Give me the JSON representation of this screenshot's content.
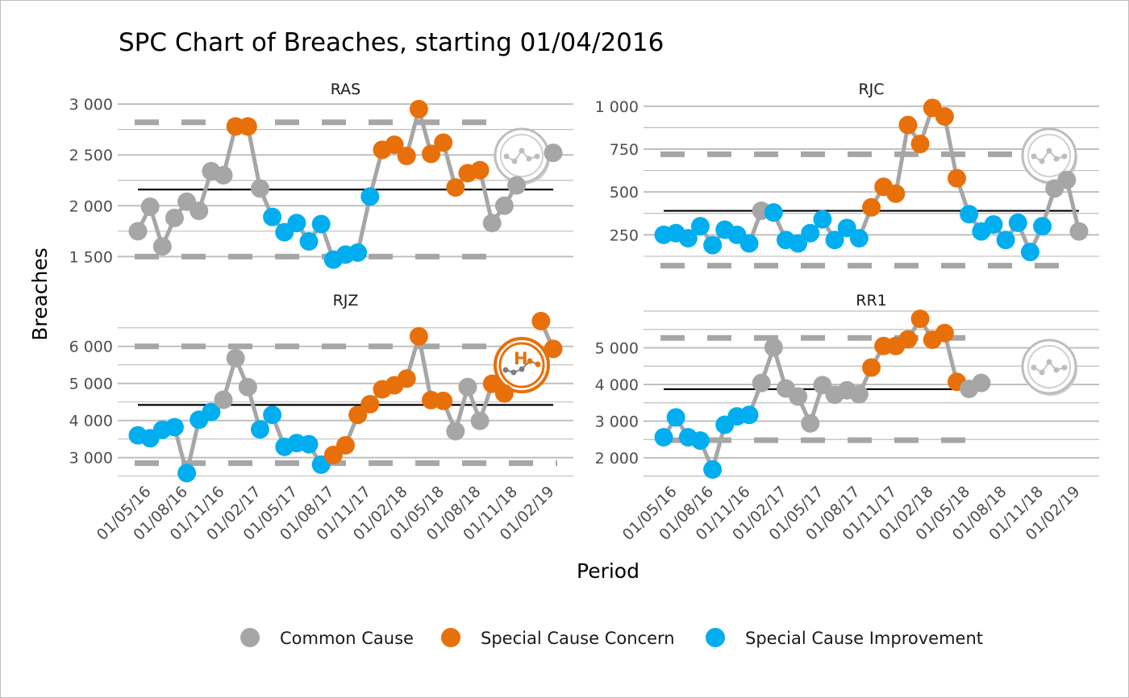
{
  "chart_data": {
    "type": "line",
    "title": "SPC Chart of Breaches, starting 01/04/2016",
    "xlabel": "Period",
    "ylabel": "Breaches",
    "x_tick_labels": [
      "01/05/16",
      "01/08/16",
      "01/11/16",
      "01/02/17",
      "01/05/17",
      "01/08/17",
      "01/11/17",
      "01/02/18",
      "01/05/18",
      "01/08/18",
      "01/11/18",
      "01/02/19"
    ],
    "x_months_from_start": [
      1,
      4,
      7,
      10,
      13,
      16,
      19,
      22,
      25,
      28,
      31,
      34
    ],
    "grid": true,
    "colors": {
      "Common Cause": "#a6a6a6",
      "Special Cause Concern": "#e8700a",
      "Special Cause Improvement": "#00aeef",
      "line": "#a6a6a6",
      "mean": "#000000",
      "limits": "#a6a6a6"
    },
    "legend": {
      "placement": "bottom",
      "entries": [
        "Common Cause",
        "Special Cause Concern",
        "Special Cause Improvement"
      ]
    },
    "panels": [
      {
        "name": "RAS",
        "yticks": [
          1500,
          2000,
          2500,
          3000
        ],
        "ytick_labels": [
          "1 500",
          "2 000",
          "2 500",
          "3 000"
        ],
        "mean": 2160,
        "ucl": 2820,
        "lcl": 1500,
        "icon": "common-cause-icon",
        "values": [
          1750,
          1990,
          1600,
          1880,
          2040,
          1950,
          2340,
          2300,
          2780,
          2780,
          2170,
          1890,
          1740,
          1830,
          1650,
          1820,
          1470,
          1520,
          1540,
          2090,
          2550,
          2600,
          2490,
          2950,
          2510,
          2620,
          2180,
          2320,
          2350,
          1830,
          2000,
          2200,
          null,
          null,
          2520
        ],
        "status": [
          "Common Cause",
          "Common Cause",
          "Common Cause",
          "Common Cause",
          "Common Cause",
          "Common Cause",
          "Common Cause",
          "Common Cause",
          "Special Cause Concern",
          "Special Cause Concern",
          "Common Cause",
          "Special Cause Improvement",
          "Special Cause Improvement",
          "Special Cause Improvement",
          "Special Cause Improvement",
          "Special Cause Improvement",
          "Special Cause Improvement",
          "Special Cause Improvement",
          "Special Cause Improvement",
          "Special Cause Improvement",
          "Special Cause Concern",
          "Special Cause Concern",
          "Special Cause Concern",
          "Special Cause Concern",
          "Special Cause Concern",
          "Special Cause Concern",
          "Special Cause Concern",
          "Special Cause Concern",
          "Special Cause Concern",
          "Common Cause",
          "Common Cause",
          "Common Cause",
          null,
          null,
          "Common Cause"
        ]
      },
      {
        "name": "RJC",
        "yticks": [
          250,
          500,
          750,
          1000
        ],
        "ytick_labels": [
          "250",
          "500",
          "750",
          "1 000"
        ],
        "mean": 390,
        "ucl": 720,
        "lcl": 70,
        "icon": "common-cause-icon",
        "values": [
          250,
          260,
          230,
          300,
          190,
          280,
          250,
          200,
          390,
          380,
          220,
          200,
          260,
          340,
          220,
          290,
          230,
          410,
          530,
          490,
          890,
          780,
          990,
          940,
          580,
          370,
          270,
          310,
          220,
          320,
          150,
          300,
          520,
          570,
          270
        ],
        "status": [
          "Special Cause Improvement",
          "Special Cause Improvement",
          "Special Cause Improvement",
          "Special Cause Improvement",
          "Special Cause Improvement",
          "Special Cause Improvement",
          "Special Cause Improvement",
          "Special Cause Improvement",
          "Common Cause",
          "Special Cause Improvement",
          "Special Cause Improvement",
          "Special Cause Improvement",
          "Special Cause Improvement",
          "Special Cause Improvement",
          "Special Cause Improvement",
          "Special Cause Improvement",
          "Special Cause Improvement",
          "Special Cause Concern",
          "Special Cause Concern",
          "Special Cause Concern",
          "Special Cause Concern",
          "Special Cause Concern",
          "Special Cause Concern",
          "Special Cause Concern",
          "Special Cause Concern",
          "Special Cause Improvement",
          "Special Cause Improvement",
          "Special Cause Improvement",
          "Special Cause Improvement",
          "Special Cause Improvement",
          "Special Cause Improvement",
          "Special Cause Improvement",
          "Common Cause",
          "Common Cause",
          "Common Cause"
        ]
      },
      {
        "name": "RJZ",
        "yticks": [
          3000,
          4000,
          5000,
          6000
        ],
        "ytick_labels": [
          "3 000",
          "4 000",
          "5 000",
          "6 000"
        ],
        "mean": 4420,
        "ucl": 6000,
        "lcl": 2850,
        "icon": "special-cause-concern-high-icon",
        "icon_letter": "H",
        "values": [
          3600,
          3520,
          3750,
          3820,
          2580,
          4020,
          4230,
          4560,
          5680,
          4900,
          3760,
          4150,
          3290,
          3390,
          3360,
          2810,
          3070,
          3330,
          4150,
          4440,
          4840,
          4950,
          5130,
          6270,
          4550,
          4530,
          3710,
          4900,
          3990,
          4990,
          4730,
          null,
          null,
          6680,
          5930
        ],
        "status": [
          "Special Cause Improvement",
          "Special Cause Improvement",
          "Special Cause Improvement",
          "Special Cause Improvement",
          "Special Cause Improvement",
          "Special Cause Improvement",
          "Special Cause Improvement",
          "Common Cause",
          "Common Cause",
          "Common Cause",
          "Special Cause Improvement",
          "Special Cause Improvement",
          "Special Cause Improvement",
          "Special Cause Improvement",
          "Special Cause Improvement",
          "Special Cause Improvement",
          "Special Cause Concern",
          "Special Cause Concern",
          "Special Cause Concern",
          "Special Cause Concern",
          "Special Cause Concern",
          "Special Cause Concern",
          "Special Cause Concern",
          "Special Cause Concern",
          "Special Cause Concern",
          "Special Cause Concern",
          "Common Cause",
          "Common Cause",
          "Common Cause",
          "Special Cause Concern",
          "Special Cause Concern",
          null,
          null,
          "Special Cause Concern",
          "Special Cause Concern"
        ]
      },
      {
        "name": "RR1",
        "yticks": [
          2000,
          3000,
          4000,
          5000
        ],
        "ytick_labels": [
          "2 000",
          "3 000",
          "4 000",
          "5 000"
        ],
        "mean": 3870,
        "ucl": 5270,
        "lcl": 2480,
        "icon": "common-cause-icon",
        "values": [
          2560,
          3100,
          2560,
          2470,
          1680,
          2900,
          3130,
          3170,
          4040,
          5010,
          3890,
          3670,
          2940,
          3980,
          3720,
          3840,
          3730,
          4460,
          5050,
          5050,
          5230,
          5790,
          5220,
          5400,
          4070,
          3880,
          4040
        ],
        "status": [
          "Special Cause Improvement",
          "Special Cause Improvement",
          "Special Cause Improvement",
          "Special Cause Improvement",
          "Special Cause Improvement",
          "Special Cause Improvement",
          "Special Cause Improvement",
          "Special Cause Improvement",
          "Common Cause",
          "Common Cause",
          "Common Cause",
          "Common Cause",
          "Common Cause",
          "Common Cause",
          "Common Cause",
          "Common Cause",
          "Common Cause",
          "Special Cause Concern",
          "Special Cause Concern",
          "Special Cause Concern",
          "Special Cause Concern",
          "Special Cause Concern",
          "Special Cause Concern",
          "Special Cause Concern",
          "Special Cause Concern",
          "Common Cause",
          "Common Cause"
        ]
      }
    ]
  }
}
